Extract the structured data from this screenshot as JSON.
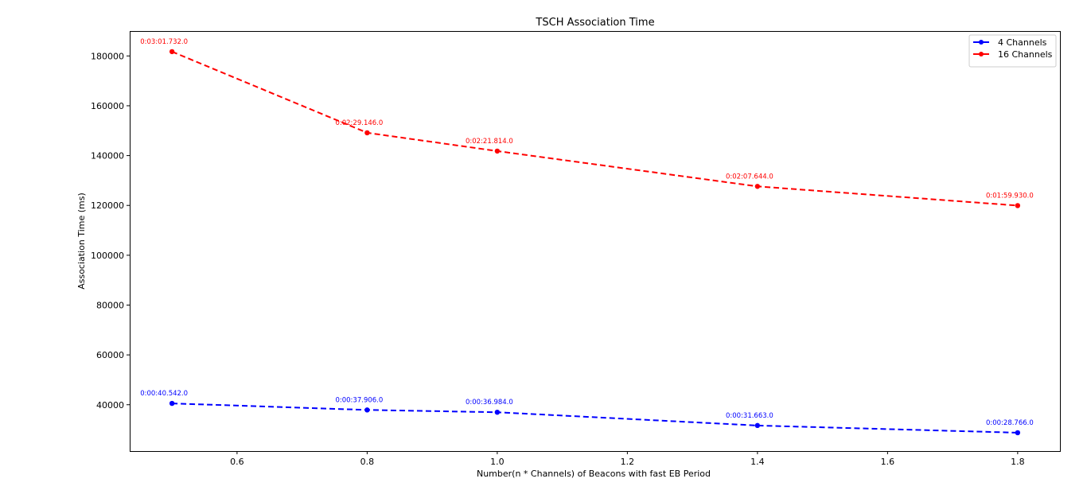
{
  "chart_data": {
    "type": "line",
    "title": "TSCH Association Time",
    "xlabel": "Number(n * Channels) of Beacons with fast EB Period",
    "ylabel": "Association Time (ms)",
    "xlim": [
      0.435,
      1.865
    ],
    "ylim": [
      21400,
      190000
    ],
    "xticks": [
      0.6,
      0.8,
      1.0,
      1.2,
      1.4,
      1.6,
      1.8
    ],
    "xtick_labels": [
      "0.6",
      "0.8",
      "1.0",
      "1.2",
      "1.4",
      "1.6",
      "1.8"
    ],
    "yticks": [
      40000,
      60000,
      80000,
      100000,
      120000,
      140000,
      160000,
      180000
    ],
    "ytick_labels": [
      "40000",
      "60000",
      "80000",
      "100000",
      "120000",
      "140000",
      "160000",
      "180000"
    ],
    "grid": false,
    "legend_position": "top-right",
    "series": [
      {
        "name": "4 Channels",
        "color": "#0000ff",
        "line_style": "dashed",
        "marker": "circle",
        "x": [
          0.5,
          0.8,
          1.0,
          1.4,
          1.8
        ],
        "y": [
          40542,
          37906,
          36984,
          31663,
          28766
        ],
        "labels": [
          "0:00:40.542.0",
          "0:00:37.906.0",
          "0:00:36.984.0",
          "0:00:31.663.0",
          "0:00:28.766.0"
        ]
      },
      {
        "name": "16 Channels",
        "color": "#ff0000",
        "line_style": "dashed",
        "marker": "circle",
        "x": [
          0.5,
          0.8,
          1.0,
          1.4,
          1.8
        ],
        "y": [
          181732,
          149146,
          141814,
          127644,
          119930
        ],
        "labels": [
          "0:03:01.732.0",
          "0:02:29.146.0",
          "0:02:21.814.0",
          "0:02:07.644.0",
          "0:01:59.930.0"
        ]
      }
    ]
  }
}
